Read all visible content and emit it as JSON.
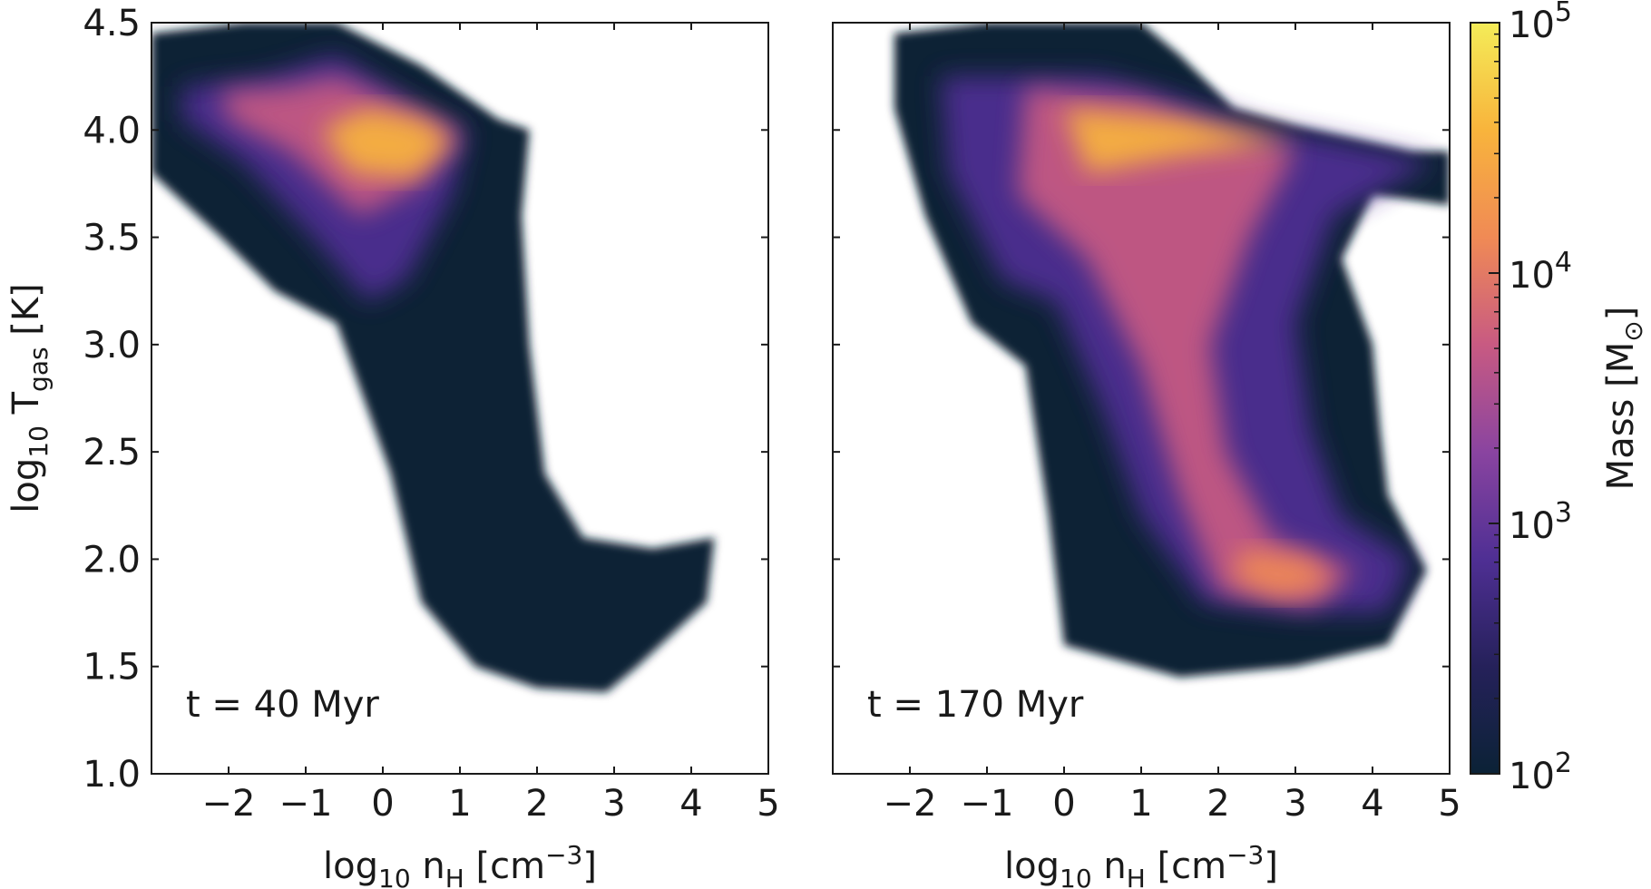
{
  "chart_data": [
    {
      "type": "heatmap",
      "annotation": "t = 40 Myr",
      "xlabel": {
        "base": "log",
        "sub": "10",
        "main": " n",
        "main_sub": "H",
        "unit": " [cm",
        "unit_sup": "−3",
        "unit_end": "]"
      },
      "ylabel": {
        "base": "log",
        "sub": "10",
        "main": " T",
        "main_sub": "gas",
        "unit": " [K]"
      },
      "xlim": [
        -3,
        5
      ],
      "ylim": [
        1.0,
        4.5
      ],
      "xticks": [
        "−2",
        "−1",
        "0",
        "1",
        "2",
        "3",
        "4",
        "5"
      ],
      "xtick_values": [
        -2,
        -1,
        0,
        1,
        2,
        3,
        4,
        5
      ],
      "yticks": [
        "1.0",
        "1.5",
        "2.0",
        "2.5",
        "3.0",
        "3.5",
        "4.0",
        "4.5"
      ],
      "ytick_values": [
        1.0,
        1.5,
        2.0,
        2.5,
        3.0,
        3.5,
        4.0,
        4.5
      ],
      "regions": [
        {
          "level": 0,
          "points": [
            [
              -3,
              4.45
            ],
            [
              -1.8,
              4.5
            ],
            [
              -0.6,
              4.5
            ],
            [
              0.5,
              4.3
            ],
            [
              1.5,
              4.05
            ],
            [
              1.9,
              4.0
            ],
            [
              1.8,
              3.6
            ],
            [
              1.9,
              3.0
            ],
            [
              2.1,
              2.4
            ],
            [
              2.6,
              2.1
            ],
            [
              3.5,
              2.05
            ],
            [
              4.3,
              2.1
            ],
            [
              4.2,
              1.8
            ],
            [
              3.3,
              1.5
            ],
            [
              2.9,
              1.38
            ],
            [
              2.0,
              1.4
            ],
            [
              1.2,
              1.5
            ],
            [
              0.5,
              1.8
            ],
            [
              0.1,
              2.4
            ],
            [
              -0.6,
              3.1
            ],
            [
              -1.4,
              3.25
            ],
            [
              -2.1,
              3.5
            ],
            [
              -3,
              3.8
            ]
          ]
        },
        {
          "level": 0.35,
          "points": [
            [
              -2.6,
              4.2
            ],
            [
              -1.5,
              4.25
            ],
            [
              -0.6,
              4.35
            ],
            [
              0.5,
              4.1
            ],
            [
              1.1,
              4.0
            ],
            [
              0.9,
              3.7
            ],
            [
              0.3,
              3.3
            ],
            [
              -0.2,
              3.2
            ],
            [
              -0.9,
              3.5
            ],
            [
              -1.8,
              3.85
            ],
            [
              -2.6,
              4.05
            ]
          ]
        },
        {
          "level": 0.55,
          "points": [
            [
              -2.1,
              4.18
            ],
            [
              -1.2,
              4.2
            ],
            [
              -0.6,
              4.25
            ],
            [
              0.5,
              4.08
            ],
            [
              1.0,
              3.98
            ],
            [
              0.5,
              3.75
            ],
            [
              -0.3,
              3.6
            ],
            [
              -1.2,
              3.9
            ],
            [
              -2.0,
              4.05
            ]
          ]
        },
        {
          "level": 0.8,
          "points": [
            [
              -0.8,
              4.0
            ],
            [
              -0.2,
              4.1
            ],
            [
              0.5,
              4.05
            ],
            [
              0.9,
              3.95
            ],
            [
              0.4,
              3.78
            ],
            [
              -0.4,
              3.8
            ]
          ]
        }
      ]
    },
    {
      "type": "heatmap",
      "annotation": "t = 170 Myr",
      "xlabel": {
        "base": "log",
        "sub": "10",
        "main": " n",
        "main_sub": "H",
        "unit": " [cm",
        "unit_sup": "−3",
        "unit_end": "]"
      },
      "xlim": [
        -3,
        5
      ],
      "ylim": [
        1.0,
        4.5
      ],
      "xticks": [
        "−2",
        "−1",
        "0",
        "1",
        "2",
        "3",
        "4",
        "5"
      ],
      "xtick_values": [
        -2,
        -1,
        0,
        1,
        2,
        3,
        4,
        5
      ],
      "yticks": [
        "1.0",
        "1.5",
        "2.0",
        "2.5",
        "3.0",
        "3.5",
        "4.0",
        "4.5"
      ],
      "ytick_values": [
        1.0,
        1.5,
        2.0,
        2.5,
        3.0,
        3.5,
        4.0,
        4.5
      ],
      "regions": [
        {
          "level": 0,
          "points": [
            [
              -2.2,
              4.45
            ],
            [
              -1.0,
              4.5
            ],
            [
              1.0,
              4.5
            ],
            [
              1.5,
              4.35
            ],
            [
              2.2,
              4.1
            ],
            [
              3.0,
              4.02
            ],
            [
              4.5,
              3.9
            ],
            [
              5,
              3.9
            ],
            [
              5,
              3.65
            ],
            [
              4.0,
              3.7
            ],
            [
              3.6,
              3.4
            ],
            [
              4.0,
              3.0
            ],
            [
              4.1,
              2.6
            ],
            [
              4.2,
              2.3
            ],
            [
              4.7,
              1.95
            ],
            [
              4.2,
              1.6
            ],
            [
              3.0,
              1.5
            ],
            [
              1.5,
              1.45
            ],
            [
              0.0,
              1.6
            ],
            [
              -0.2,
              2.2
            ],
            [
              -0.5,
              2.9
            ],
            [
              -1.2,
              3.1
            ],
            [
              -1.8,
              3.6
            ],
            [
              -2.2,
              4.1
            ]
          ]
        },
        {
          "level": 0.35,
          "points": [
            [
              -1.6,
              4.25
            ],
            [
              0.5,
              4.25
            ],
            [
              1.5,
              4.15
            ],
            [
              2.5,
              4.02
            ],
            [
              3.5,
              3.95
            ],
            [
              4.8,
              3.85
            ],
            [
              3.5,
              3.6
            ],
            [
              3.0,
              3.1
            ],
            [
              3.2,
              2.6
            ],
            [
              3.6,
              2.2
            ],
            [
              4.5,
              2.0
            ],
            [
              4.2,
              1.75
            ],
            [
              3.0,
              1.75
            ],
            [
              1.8,
              1.8
            ],
            [
              1.0,
              2.2
            ],
            [
              0.5,
              2.7
            ],
            [
              -0.1,
              3.2
            ],
            [
              -0.8,
              3.3
            ],
            [
              -1.5,
              3.8
            ]
          ]
        },
        {
          "level": 0.55,
          "points": [
            [
              -0.5,
              4.2
            ],
            [
              1.0,
              4.15
            ],
            [
              2.0,
              4.0
            ],
            [
              3.0,
              3.9
            ],
            [
              2.4,
              3.5
            ],
            [
              1.9,
              3.0
            ],
            [
              2.1,
              2.5
            ],
            [
              2.7,
              2.1
            ],
            [
              3.8,
              1.95
            ],
            [
              3.2,
              1.78
            ],
            [
              2.0,
              1.85
            ],
            [
              1.5,
              2.3
            ],
            [
              1.0,
              2.9
            ],
            [
              0.3,
              3.4
            ],
            [
              -0.6,
              3.7
            ]
          ]
        },
        {
          "level": 0.8,
          "points": [
            [
              0.0,
              4.1
            ],
            [
              1.5,
              4.05
            ],
            [
              3.0,
              3.95
            ],
            [
              1.5,
              3.88
            ],
            [
              0.3,
              3.8
            ]
          ]
        },
        {
          "level": 0.7,
          "points": [
            [
              2.3,
              2.05
            ],
            [
              3.2,
              2.0
            ],
            [
              3.5,
              1.88
            ],
            [
              2.8,
              1.82
            ],
            [
              2.2,
              1.9
            ]
          ]
        }
      ]
    }
  ],
  "colorbar": {
    "label": "Mass [M",
    "label_sub": "⊙",
    "label_end": "]",
    "scale": "log",
    "range": [
      100,
      100000
    ],
    "ticks": [
      {
        "value": 100,
        "base": "10",
        "exp": "2"
      },
      {
        "value": 1000,
        "base": "10",
        "exp": "3"
      },
      {
        "value": 10000,
        "base": "10",
        "exp": "4"
      },
      {
        "value": 100000,
        "base": "10",
        "exp": "5"
      }
    ],
    "colormap": [
      "#0b2236",
      "#25215a",
      "#4f2f94",
      "#8a44a0",
      "#c85a82",
      "#f08a55",
      "#f8b43c",
      "#f4ec58"
    ]
  }
}
